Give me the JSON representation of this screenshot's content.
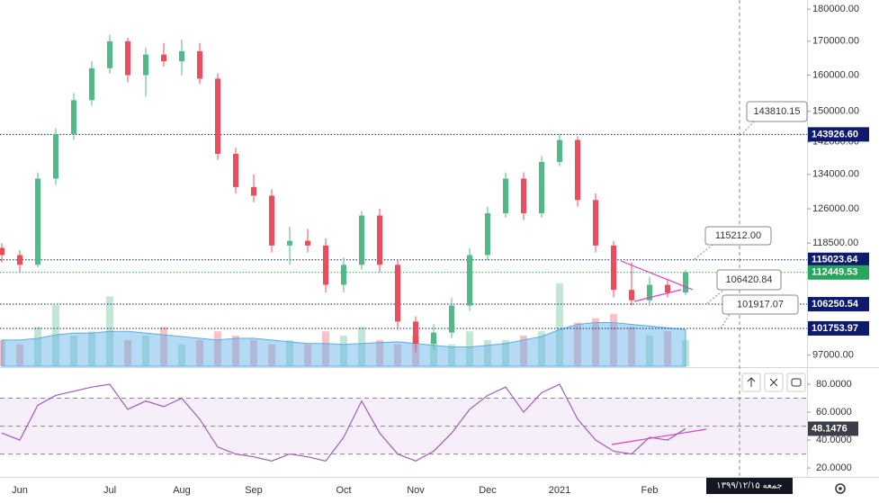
{
  "chart_data": {
    "type": "candlestick",
    "log_scale": true,
    "up_color": "#53b987",
    "down_color": "#eb4d5c",
    "categories": [
      null,
      "Jun",
      null,
      null,
      null,
      null,
      "Jul",
      null,
      null,
      null,
      "Aug",
      null,
      null,
      null,
      "Sep",
      null,
      null,
      null,
      null,
      "Oct",
      null,
      null,
      null,
      "Nov",
      null,
      null,
      null,
      "Dec",
      null,
      null,
      null,
      "2021",
      null,
      null,
      null,
      null,
      "Feb",
      null,
      null
    ],
    "candles": [
      [
        117500,
        118500,
        114500,
        116000
      ],
      [
        116000,
        117000,
        112500,
        114000
      ],
      [
        114000,
        134500,
        113500,
        133000
      ],
      [
        133000,
        145500,
        131500,
        144000
      ],
      [
        144000,
        155000,
        142500,
        153000
      ],
      [
        153000,
        164000,
        151500,
        162000
      ],
      [
        162000,
        172000,
        160500,
        170000
      ],
      [
        170000,
        171000,
        158000,
        160000
      ],
      [
        160000,
        168000,
        154000,
        166000
      ],
      [
        166000,
        169500,
        162500,
        164000
      ],
      [
        164000,
        170500,
        160000,
        167000
      ],
      [
        167000,
        169500,
        157500,
        159000
      ],
      [
        159000,
        160500,
        137500,
        139000
      ],
      [
        139000,
        140500,
        129500,
        131000
      ],
      [
        131000,
        134000,
        127500,
        129000
      ],
      [
        129000,
        130500,
        116500,
        118000
      ],
      [
        118000,
        122000,
        114000,
        119000
      ],
      [
        119000,
        121500,
        116500,
        118000
      ],
      [
        118000,
        119500,
        108500,
        110000
      ],
      [
        110000,
        115500,
        108500,
        114000
      ],
      [
        114000,
        125500,
        113000,
        124500
      ],
      [
        124500,
        126000,
        112500,
        114000
      ],
      [
        114000,
        115000,
        101500,
        103000
      ],
      [
        103000,
        104000,
        97500,
        99000
      ],
      [
        99000,
        102500,
        98000,
        101000
      ],
      [
        101000,
        107500,
        100000,
        106000
      ],
      [
        106000,
        117500,
        105000,
        116000
      ],
      [
        116000,
        126500,
        115000,
        125000
      ],
      [
        125000,
        134500,
        124000,
        133000
      ],
      [
        133000,
        134500,
        123500,
        125000
      ],
      [
        125000,
        138500,
        124000,
        137000
      ],
      [
        137000,
        144000,
        136000,
        142500
      ],
      [
        142500,
        143500,
        126500,
        128000
      ],
      [
        128000,
        129500,
        116500,
        118000
      ],
      [
        118000,
        119000,
        107500,
        109000
      ],
      [
        109000,
        114500,
        106000,
        107000
      ],
      [
        107000,
        111500,
        106000,
        110000
      ],
      [
        110000,
        111000,
        107500,
        108500
      ],
      [
        108500,
        113000,
        108000,
        112449.53
      ]
    ],
    "ylim": [
      95100,
      183000
    ],
    "yticks": [
      {
        "value": 97000,
        "label": "97000.00"
      },
      {
        "value": 118500,
        "label": "118500.00"
      },
      {
        "value": 126000,
        "label": "126000.00"
      },
      {
        "value": 134000,
        "label": "134000.00"
      },
      {
        "value": 142000,
        "label": "142000.00"
      },
      {
        "value": 150000,
        "label": "150000.00"
      },
      {
        "value": 160000,
        "label": "160000.00"
      },
      {
        "value": 170000,
        "label": "170000.00"
      },
      {
        "value": 180000,
        "label": "180000.00"
      }
    ],
    "levels": [
      {
        "value": 143926.6,
        "label": "143926.60"
      },
      {
        "value": 115023.64,
        "label": "115023.64"
      },
      {
        "value": 106250.54,
        "label": "106250.54"
      },
      {
        "value": 101753.97,
        "label": "101753.97"
      }
    ],
    "level_color": "#0d1a6e",
    "last_color": "#26a65b",
    "callouts": [
      {
        "value": 143810.15,
        "label": "143810.15"
      },
      {
        "value": 115212,
        "label": "115212.00"
      },
      {
        "value": 106420.84,
        "label": "106420.84"
      },
      {
        "value": 101917.07,
        "label": "101917.07"
      }
    ],
    "volume": {
      "values": [
        30,
        25,
        45,
        70,
        35,
        40,
        80,
        30,
        35,
        45,
        25,
        30,
        40,
        35,
        30,
        25,
        30,
        25,
        40,
        35,
        45,
        30,
        25,
        35,
        30,
        25,
        40,
        30,
        30,
        35,
        40,
        95,
        50,
        55,
        60,
        45,
        35,
        40,
        30
      ],
      "ma": [
        30,
        30,
        32,
        36,
        38,
        38,
        40,
        40,
        38,
        36,
        34,
        32,
        30,
        32,
        32,
        30,
        28,
        26,
        26,
        25,
        26,
        27,
        28,
        26,
        24,
        22,
        22,
        24,
        26,
        30,
        34,
        42,
        48,
        50,
        50,
        48,
        46,
        44,
        42
      ],
      "vlim": [
        0,
        100
      ],
      "ma_color": "#5aaee8"
    },
    "rsi": {
      "values": [
        45,
        40,
        65,
        72,
        75,
        78,
        80,
        62,
        68,
        64,
        70,
        55,
        35,
        30,
        28,
        25,
        30,
        28,
        25,
        42,
        68,
        45,
        30,
        25,
        32,
        45,
        62,
        72,
        78,
        60,
        74,
        80,
        55,
        40,
        32,
        30,
        42,
        40,
        48.1476
      ],
      "color": "#a35cbf",
      "ylim": [
        13.6,
        91
      ],
      "yticks": [
        {
          "value": 20,
          "label": "20.0000"
        },
        {
          "value": 40,
          "label": "40.0000"
        },
        {
          "value": 60,
          "label": "60.0000"
        },
        {
          "value": 80,
          "label": "80.0000"
        }
      ],
      "band": [
        30,
        70
      ],
      "mid": 50
    },
    "date_label": "جمعه ۱۳۹۹/۱۲/۱۵"
  }
}
